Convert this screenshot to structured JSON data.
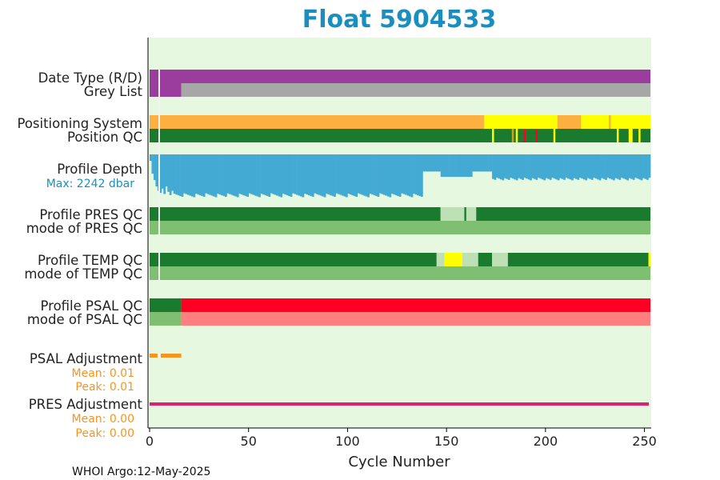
{
  "title": "Float 5904533",
  "footer": "WHOI Argo:12-May-2025",
  "colors": {
    "background": "#e6f8e0",
    "title": "#1a8fbf",
    "purple": "#9b3d9e",
    "grey": "#a7a7a7",
    "orange": "#fbb040",
    "yellow": "#ffff00",
    "dark_green": "#1a7a2e",
    "light_green": "#7fbf72",
    "pale_green": "#bde0b4",
    "blue": "#43aad3",
    "red": "#ff0024",
    "salmon": "#ff7f7f",
    "dark_orange": "#f7941d",
    "magenta": "#e0206e",
    "olive": "#d4a017"
  },
  "chart_data": {
    "type": "timeline",
    "xlabel": "Cycle Number",
    "xlim": [
      0,
      253
    ],
    "xticks": [
      0,
      50,
      100,
      150,
      200,
      250
    ],
    "labels": {
      "date_type": "Date Type (R/D)",
      "grey_list": "Grey List",
      "positioning": "Positioning System",
      "position_qc": "Position QC",
      "profile_depth": "Profile Depth",
      "max_depth": "Max: 2242 dbar",
      "pres_qc": "Profile PRES QC",
      "pres_mode": "mode of PRES QC",
      "temp_qc": "Profile TEMP QC",
      "temp_mode": "mode of TEMP QC",
      "psal_qc": "Profile PSAL QC",
      "psal_mode": "mode of PSAL QC",
      "psal_adj": "PSAL Adjustment",
      "psal_mean": "Mean: 0.01",
      "psal_peak": "Peak: 0.01",
      "pres_adj": "PRES Adjustment",
      "pres_mean": "Mean: 0.00",
      "pres_peak": "Peak: 0.00"
    },
    "rows": [
      {
        "name": "date_type",
        "segments": [
          [
            0,
            253,
            "purple"
          ]
        ]
      },
      {
        "name": "grey_list",
        "segments": [
          [
            0,
            16,
            "purple"
          ],
          [
            16,
            253,
            "grey"
          ]
        ]
      },
      {
        "name": "positioning",
        "segments": [
          [
            0,
            169,
            "orange"
          ],
          [
            169,
            206,
            "yellow"
          ],
          [
            206,
            218,
            "orange"
          ],
          [
            218,
            232,
            "yellow"
          ],
          [
            232,
            233,
            "orange"
          ],
          [
            233,
            242,
            "yellow"
          ],
          [
            242,
            253,
            "yellow"
          ]
        ]
      },
      {
        "name": "position_qc",
        "segments": [
          [
            0,
            253,
            "dark_green"
          ],
          [
            173,
            174,
            "yellow"
          ],
          [
            183,
            184,
            "olive"
          ],
          [
            185,
            186,
            "yellow"
          ],
          [
            189,
            190,
            "red"
          ],
          [
            195,
            196,
            "red"
          ],
          [
            204,
            205,
            "yellow"
          ],
          [
            236,
            237,
            "yellow"
          ],
          [
            242,
            244,
            "yellow"
          ],
          [
            247,
            248,
            "yellow"
          ]
        ]
      },
      {
        "name": "pres_qc",
        "segments": [
          [
            0,
            147,
            "dark_green"
          ],
          [
            147,
            159,
            "pale_green"
          ],
          [
            159,
            160,
            "dark_green"
          ],
          [
            160,
            165,
            "pale_green"
          ],
          [
            165,
            253,
            "dark_green"
          ]
        ]
      },
      {
        "name": "pres_mode",
        "segments": [
          [
            0,
            253,
            "light_green"
          ]
        ]
      },
      {
        "name": "temp_qc",
        "segments": [
          [
            0,
            145,
            "dark_green"
          ],
          [
            145,
            149,
            "pale_green"
          ],
          [
            149,
            158,
            "yellow"
          ],
          [
            158,
            166,
            "pale_green"
          ],
          [
            166,
            173,
            "dark_green"
          ],
          [
            173,
            181,
            "pale_green"
          ],
          [
            181,
            252,
            "dark_green"
          ],
          [
            252,
            253,
            "yellow"
          ]
        ]
      },
      {
        "name": "temp_mode",
        "segments": [
          [
            0,
            253,
            "light_green"
          ]
        ]
      },
      {
        "name": "psal_qc",
        "segments": [
          [
            0,
            16,
            "dark_green"
          ],
          [
            16,
            253,
            "red"
          ]
        ]
      },
      {
        "name": "psal_mode",
        "segments": [
          [
            0,
            16,
            "light_green"
          ],
          [
            16,
            253,
            "salmon"
          ]
        ]
      }
    ],
    "profile_depth_dbar": {
      "max": 2242,
      "typical": 2000,
      "early_cycles": [
        [
          0,
          300
        ],
        [
          1,
          900
        ],
        [
          2,
          1200
        ],
        [
          3,
          1500
        ],
        [
          4,
          1700
        ],
        [
          5,
          1800
        ],
        [
          6,
          1600
        ],
        [
          7,
          1850
        ],
        [
          8,
          1500
        ],
        [
          9,
          1750
        ],
        [
          10,
          1900
        ],
        [
          11,
          1700
        ]
      ],
      "shallow_ranges": [
        [
          138,
          147,
          800
        ],
        [
          147,
          163,
          1050
        ],
        [
          163,
          173,
          800
        ]
      ],
      "deep_after": 173,
      "deep_value": 1150
    },
    "psal_adjustment": {
      "segments": [
        [
          0,
          16,
          "dark_orange"
        ]
      ],
      "mean": 0.01,
      "peak": 0.01
    },
    "pres_adjustment": {
      "segments": [
        [
          0,
          253,
          "magenta"
        ]
      ],
      "mean": 0.0,
      "peak": 0.0
    }
  }
}
